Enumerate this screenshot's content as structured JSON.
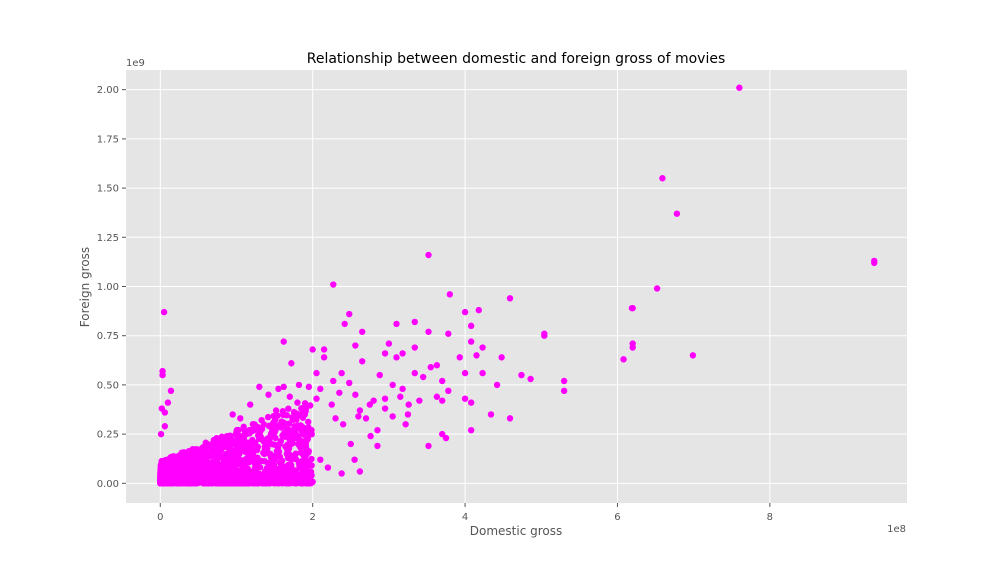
{
  "chart_data": {
    "type": "scatter",
    "title": "Relationship between domestic and foreign gross of movies",
    "xlabel": "Domestic gross",
    "ylabel": "Foreign gross",
    "x_offset_label": "1e8",
    "y_offset_label": "1e9",
    "x_scale": 100000000,
    "y_scale": 1000000000,
    "xlim": [
      -0.45,
      9.8
    ],
    "ylim": [
      -0.1,
      2.1
    ],
    "x_ticks": [
      0,
      2,
      4,
      6,
      8
    ],
    "x_tick_labels": [
      "0",
      "2",
      "4",
      "6",
      "8"
    ],
    "y_ticks": [
      0.0,
      0.25,
      0.5,
      0.75,
      1.0,
      1.25,
      1.5,
      1.75,
      2.0
    ],
    "y_tick_labels": [
      "0.00",
      "0.25",
      "0.50",
      "0.75",
      "1.00",
      "1.25",
      "1.50",
      "1.75",
      "2.00"
    ],
    "grid": true,
    "background": "#E5E5E5",
    "grid_color": "#FFFFFF",
    "marker_color": "#FF00FF",
    "points": [
      [
        7.6,
        2.01
      ],
      [
        6.59,
        1.55
      ],
      [
        6.78,
        1.37
      ],
      [
        9.37,
        1.13
      ],
      [
        9.37,
        1.12
      ],
      [
        6.52,
        0.99
      ],
      [
        6.2,
        0.89
      ],
      [
        6.19,
        0.89
      ],
      [
        6.2,
        0.71
      ],
      [
        6.2,
        0.69
      ],
      [
        6.08,
        0.63
      ],
      [
        6.99,
        0.65
      ],
      [
        5.3,
        0.52
      ],
      [
        5.3,
        0.47
      ],
      [
        5.04,
        0.76
      ],
      [
        5.04,
        0.75
      ],
      [
        4.86,
        0.53
      ],
      [
        4.74,
        0.55
      ],
      [
        4.59,
        0.94
      ],
      [
        4.59,
        0.33
      ],
      [
        4.48,
        0.64
      ],
      [
        4.42,
        0.5
      ],
      [
        4.34,
        0.35
      ],
      [
        4.23,
        0.69
      ],
      [
        4.23,
        0.56
      ],
      [
        4.18,
        0.88
      ],
      [
        4.15,
        0.65
      ],
      [
        4.08,
        0.8
      ],
      [
        4.08,
        0.72
      ],
      [
        4.08,
        0.41
      ],
      [
        4.08,
        0.27
      ],
      [
        4.0,
        0.87
      ],
      [
        4.0,
        0.56
      ],
      [
        4.0,
        0.43
      ],
      [
        3.93,
        0.64
      ],
      [
        3.8,
        0.96
      ],
      [
        3.78,
        0.76
      ],
      [
        3.78,
        0.47
      ],
      [
        3.7,
        0.52
      ],
      [
        3.7,
        0.42
      ],
      [
        3.75,
        0.23
      ],
      [
        3.7,
        0.25
      ],
      [
        3.63,
        0.6
      ],
      [
        3.63,
        0.44
      ],
      [
        3.52,
        1.16
      ],
      [
        3.52,
        0.77
      ],
      [
        3.52,
        0.19
      ],
      [
        3.34,
        0.82
      ],
      [
        3.34,
        0.69
      ],
      [
        3.34,
        0.56
      ],
      [
        3.26,
        0.4
      ],
      [
        3.18,
        0.66
      ],
      [
        3.18,
        0.48
      ],
      [
        3.1,
        0.81
      ],
      [
        3.1,
        0.64
      ],
      [
        3.05,
        0.5
      ],
      [
        3.05,
        0.34
      ],
      [
        3.0,
        0.71
      ],
      [
        2.95,
        0.66
      ],
      [
        2.95,
        0.43
      ],
      [
        2.88,
        0.55
      ],
      [
        2.85,
        0.19
      ],
      [
        2.8,
        0.42
      ],
      [
        2.76,
        0.24
      ],
      [
        2.65,
        0.77
      ],
      [
        2.65,
        0.62
      ],
      [
        2.62,
        0.37
      ],
      [
        2.56,
        0.7
      ],
      [
        2.56,
        0.45
      ],
      [
        2.48,
        0.86
      ],
      [
        2.48,
        0.51
      ],
      [
        2.42,
        0.81
      ],
      [
        2.38,
        0.56
      ],
      [
        2.27,
        1.01
      ],
      [
        2.27,
        0.52
      ],
      [
        2.15,
        0.68
      ],
      [
        2.15,
        0.64
      ],
      [
        2.05,
        0.56
      ],
      [
        2.0,
        0.68
      ],
      [
        1.95,
        0.49
      ],
      [
        1.82,
        0.5
      ],
      [
        1.72,
        0.61
      ],
      [
        1.62,
        0.72
      ],
      [
        1.62,
        0.49
      ],
      [
        1.52,
        0.37
      ],
      [
        1.42,
        0.45
      ],
      [
        1.3,
        0.49
      ],
      [
        0.05,
        0.87
      ],
      [
        0.03,
        0.57
      ],
      [
        0.03,
        0.55
      ],
      [
        0.14,
        0.47
      ],
      [
        0.1,
        0.41
      ],
      [
        0.02,
        0.38
      ],
      [
        0.06,
        0.36
      ],
      [
        0.01,
        0.25
      ],
      [
        0.06,
        0.29
      ],
      [
        2.5,
        0.2
      ],
      [
        2.55,
        0.12
      ],
      [
        2.62,
        0.06
      ],
      [
        2.38,
        0.05
      ],
      [
        2.2,
        0.08
      ],
      [
        2.1,
        0.12
      ],
      [
        1.85,
        0.0
      ],
      [
        1.78,
        0.0
      ],
      [
        1.66,
        0.0
      ],
      [
        2.3,
        0.33
      ],
      [
        2.4,
        0.3
      ],
      [
        2.6,
        0.34
      ],
      [
        2.7,
        0.33
      ],
      [
        2.85,
        0.27
      ],
      [
        2.75,
        0.4
      ],
      [
        2.95,
        0.38
      ],
      [
        3.15,
        0.44
      ],
      [
        3.22,
        0.3
      ],
      [
        3.25,
        0.35
      ],
      [
        3.4,
        0.42
      ],
      [
        3.45,
        0.54
      ],
      [
        3.55,
        0.59
      ],
      [
        1.05,
        0.33
      ],
      [
        0.95,
        0.35
      ],
      [
        1.18,
        0.4
      ],
      [
        1.55,
        0.48
      ],
      [
        1.7,
        0.44
      ],
      [
        1.8,
        0.41
      ],
      [
        1.9,
        0.39
      ],
      [
        2.05,
        0.43
      ],
      [
        2.1,
        0.48
      ],
      [
        2.25,
        0.4
      ],
      [
        2.35,
        0.46
      ]
    ],
    "cluster": {
      "count": 1600,
      "x_max": 2.0,
      "y_max": 0.32
    }
  }
}
